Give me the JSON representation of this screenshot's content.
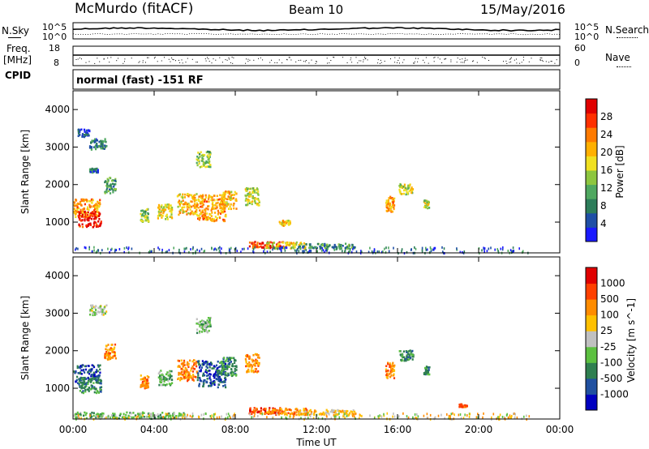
{
  "header": {
    "radar_title": "McMurdo (fitACF)",
    "beam": "Beam 10",
    "date": "15/May/2016"
  },
  "status_panel": {
    "nsky_label": "N.Sky",
    "nsearch_label": "N.Search",
    "freq_label": "Freq.",
    "freq_unit": "[MHz]",
    "nave_label": "Nave",
    "cpid_label": "CPID",
    "cpid_value": "normal (fast) -151 RF",
    "noise_ticks": [
      "10^5",
      "10^0"
    ],
    "freq_ticks": [
      "18",
      "8"
    ],
    "nave_ticks": [
      "60",
      "0"
    ]
  },
  "chart_data": [
    {
      "type": "heatmap",
      "title": "Power",
      "xlabel": "",
      "ylabel": "Slant Range [km]",
      "x_ticks": [
        "00:00",
        "04:00",
        "08:00",
        "12:00",
        "16:00",
        "20:00",
        "00:00"
      ],
      "y_ticks": [
        "1000",
        "2000",
        "3000",
        "4000"
      ],
      "ylim": [
        180,
        4500
      ],
      "colorbar": {
        "label": "Power [dB]",
        "ticks": [
          "4",
          "8",
          "12",
          "16",
          "20",
          "24",
          "28"
        ],
        "range": [
          0,
          32
        ],
        "colors": [
          "#1a1aff",
          "#1f4fa6",
          "#2d7d5a",
          "#4fa860",
          "#8dc63f",
          "#f0e020",
          "#ffb000",
          "#ff7a00",
          "#ff3000",
          "#e00000"
        ]
      },
      "blobs": [
        {
          "t": 0.3,
          "r": 1400,
          "dt": 1.5,
          "dr": 350,
          "v": 22
        },
        {
          "t": 0.8,
          "r": 1100,
          "dt": 0.8,
          "dr": 300,
          "v": 30
        },
        {
          "t": 1.2,
          "r": 3100,
          "dt": 0.6,
          "dr": 200,
          "v": 8
        },
        {
          "t": 1.0,
          "r": 2400,
          "dt": 0.3,
          "dr": 80,
          "v": 6
        },
        {
          "t": 0.5,
          "r": 3400,
          "dt": 0.4,
          "dr": 150,
          "v": 4
        },
        {
          "t": 1.8,
          "r": 2000,
          "dt": 0.4,
          "dr": 300,
          "v": 10
        },
        {
          "t": 3.5,
          "r": 1200,
          "dt": 0.3,
          "dr": 250,
          "v": 14
        },
        {
          "t": 4.5,
          "r": 1300,
          "dt": 0.5,
          "dr": 280,
          "v": 18
        },
        {
          "t": 5.6,
          "r": 1500,
          "dt": 0.7,
          "dr": 400,
          "v": 20
        },
        {
          "t": 6.4,
          "r": 2700,
          "dt": 0.5,
          "dr": 300,
          "v": 14
        },
        {
          "t": 6.8,
          "r": 1400,
          "dt": 1.0,
          "dr": 500,
          "v": 22
        },
        {
          "t": 7.6,
          "r": 1600,
          "dt": 0.6,
          "dr": 350,
          "v": 20
        },
        {
          "t": 8.8,
          "r": 1700,
          "dt": 0.5,
          "dr": 350,
          "v": 16
        },
        {
          "t": 9.5,
          "r": 420,
          "dt": 1.2,
          "dr": 120,
          "v": 28
        },
        {
          "t": 10.5,
          "r": 400,
          "dt": 1.5,
          "dr": 120,
          "v": 18
        },
        {
          "t": 12.5,
          "r": 380,
          "dt": 2.0,
          "dr": 100,
          "v": 10
        },
        {
          "t": 15.6,
          "r": 1500,
          "dt": 0.3,
          "dr": 300,
          "v": 22
        },
        {
          "t": 16.4,
          "r": 1900,
          "dt": 0.5,
          "dr": 200,
          "v": 16
        },
        {
          "t": 17.4,
          "r": 1500,
          "dt": 0.2,
          "dr": 150,
          "v": 16
        },
        {
          "t": 10.4,
          "r": 1000,
          "dt": 0.4,
          "dr": 100,
          "v": 20
        }
      ]
    },
    {
      "type": "heatmap",
      "title": "Velocity",
      "xlabel": "Time UT",
      "ylabel": "Slant Range [km]",
      "x_ticks": [
        "00:00",
        "04:00",
        "08:00",
        "12:00",
        "16:00",
        "20:00",
        "00:00"
      ],
      "y_ticks": [
        "1000",
        "2000",
        "3000",
        "4000"
      ],
      "ylim": [
        180,
        4500
      ],
      "colorbar": {
        "label": "Velocity [m s^-1]",
        "ticks": [
          "1000",
          "500",
          "100",
          "25",
          "-25",
          "-100",
          "-500",
          "-1000"
        ],
        "colors": [
          "#0000c0",
          "#2050a0",
          "#2f7f50",
          "#5cc040",
          "#c0c0c0",
          "#ffc000",
          "#ff8c00",
          "#ff4000",
          "#e00000"
        ]
      },
      "blobs": [
        {
          "t": 0.3,
          "r": 1400,
          "dt": 1.5,
          "dr": 350,
          "v": 1
        },
        {
          "t": 0.8,
          "r": 1100,
          "dt": 0.8,
          "dr": 300,
          "v": 2
        },
        {
          "t": 1.2,
          "r": 3100,
          "dt": 0.6,
          "dr": 200,
          "v": 4
        },
        {
          "t": 1.8,
          "r": 2000,
          "dt": 0.4,
          "dr": 300,
          "v": 6
        },
        {
          "t": 3.5,
          "r": 1200,
          "dt": 0.3,
          "dr": 250,
          "v": 6
        },
        {
          "t": 4.5,
          "r": 1300,
          "dt": 0.5,
          "dr": 280,
          "v": 3
        },
        {
          "t": 5.6,
          "r": 1500,
          "dt": 0.7,
          "dr": 400,
          "v": 6
        },
        {
          "t": 6.4,
          "r": 2700,
          "dt": 0.5,
          "dr": 300,
          "v": 3
        },
        {
          "t": 6.8,
          "r": 1400,
          "dt": 1.0,
          "dr": 500,
          "v": 1
        },
        {
          "t": 7.6,
          "r": 1600,
          "dt": 0.6,
          "dr": 350,
          "v": 2
        },
        {
          "t": 8.8,
          "r": 1700,
          "dt": 0.5,
          "dr": 350,
          "v": 6
        },
        {
          "t": 9.5,
          "r": 420,
          "dt": 1.2,
          "dr": 120,
          "v": 7
        },
        {
          "t": 10.5,
          "r": 400,
          "dt": 1.5,
          "dr": 120,
          "v": 6
        },
        {
          "t": 12.5,
          "r": 380,
          "dt": 2.0,
          "dr": 100,
          "v": 5
        },
        {
          "t": 15.6,
          "r": 1500,
          "dt": 0.3,
          "dr": 300,
          "v": 6
        },
        {
          "t": 16.4,
          "r": 1900,
          "dt": 0.5,
          "dr": 200,
          "v": 2
        },
        {
          "t": 17.4,
          "r": 1500,
          "dt": 0.2,
          "dr": 150,
          "v": 2
        },
        {
          "t": 19.2,
          "r": 560,
          "dt": 0.3,
          "dr": 60,
          "v": 7
        },
        {
          "t": 2.0,
          "r": 300,
          "dt": 5.0,
          "dr": 120,
          "v": 3
        }
      ]
    }
  ]
}
